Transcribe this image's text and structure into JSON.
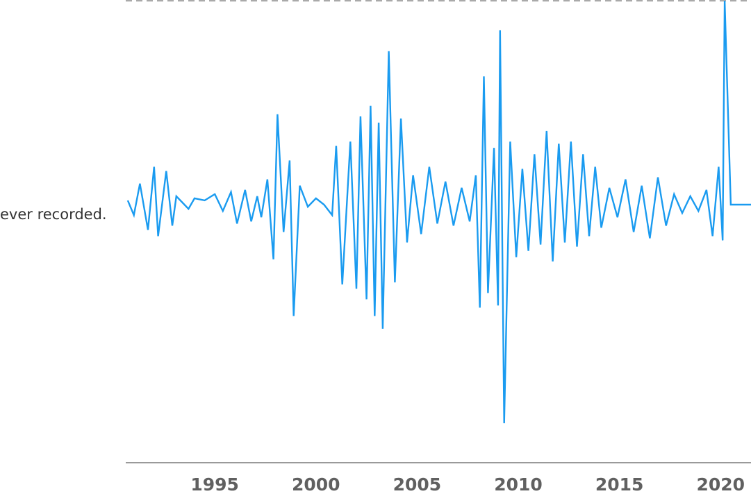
{
  "annotation_text": "ever recorded.",
  "chart_data": {
    "type": "line",
    "title": "",
    "xlabel": "",
    "ylabel": "",
    "x_ticks": [
      "1995",
      "2000",
      "2005",
      "2010",
      "2015",
      "2020"
    ],
    "xlim": [
      1990.6,
      2021.5
    ],
    "grid": false,
    "legend": "none",
    "series": [
      {
        "color": "#1a9bf0",
        "x": [
          1990.7,
          1991.0,
          1991.3,
          1991.7,
          1992.0,
          1992.2,
          1992.6,
          1992.9,
          1993.1,
          1993.4,
          1993.7,
          1994.0,
          1994.5,
          1995.0,
          1995.4,
          1995.8,
          1996.1,
          1996.5,
          1996.8,
          1997.1,
          1997.3,
          1997.6,
          1997.9,
          1998.1,
          1998.4,
          1998.7,
          1998.9,
          1999.2,
          1999.6,
          2000.0,
          2000.4,
          2000.8,
          2001.0,
          2001.3,
          2001.7,
          2002.0,
          2002.2,
          2002.5,
          2002.7,
          2002.9,
          2003.1,
          2003.3,
          2003.6,
          2003.9,
          2004.2,
          2004.5,
          2004.8,
          2005.2,
          2005.6,
          2006.0,
          2006.4,
          2006.8,
          2007.2,
          2007.6,
          2007.9,
          2008.1,
          2008.3,
          2008.5,
          2008.8,
          2009.0,
          2009.1,
          2009.3,
          2009.6,
          2009.9,
          2010.2,
          2010.5,
          2010.8,
          2011.1,
          2011.4,
          2011.7,
          2012.0,
          2012.3,
          2012.6,
          2012.9,
          2013.2,
          2013.5,
          2013.8,
          2014.1,
          2014.5,
          2014.9,
          2015.3,
          2015.7,
          2016.1,
          2016.5,
          2016.9,
          2017.3,
          2017.7,
          2018.1,
          2018.5,
          2018.9,
          2019.3,
          2019.6,
          2019.9,
          2020.1,
          2020.2,
          2020.5,
          2021.0,
          2021.5
        ],
        "y": [
          0.2,
          -0.5,
          1.0,
          -1.2,
          1.8,
          -1.5,
          1.6,
          -1.0,
          0.4,
          0.1,
          -0.2,
          0.3,
          0.2,
          0.5,
          -0.3,
          0.6,
          -0.9,
          0.7,
          -0.8,
          0.4,
          -0.6,
          1.2,
          -2.6,
          4.3,
          -1.3,
          2.1,
          -5.3,
          0.9,
          -0.1,
          0.3,
          0.0,
          -0.5,
          2.8,
          -3.8,
          3.0,
          -4.0,
          4.2,
          -4.5,
          4.7,
          -5.3,
          3.9,
          -5.9,
          7.3,
          -3.7,
          4.1,
          -1.8,
          1.4,
          -1.4,
          1.8,
          -0.9,
          1.1,
          -1.0,
          0.8,
          -0.8,
          1.4,
          -4.9,
          6.1,
          -4.2,
          2.7,
          -4.8,
          8.3,
          -10.4,
          3.0,
          -2.5,
          1.7,
          -2.2,
          2.4,
          -1.9,
          3.5,
          -2.7,
          2.9,
          -1.8,
          3.0,
          -2.0,
          2.4,
          -1.5,
          1.8,
          -1.1,
          0.8,
          -0.6,
          1.2,
          -1.3,
          0.9,
          -1.6,
          1.3,
          -1.0,
          0.5,
          -0.4,
          0.4,
          -0.3,
          0.7,
          -1.5,
          1.8,
          -1.7,
          9.7,
          0.0,
          0.0,
          0.0
        ]
      }
    ],
    "reference_line": {
      "style": "dashed",
      "color": "#a0a0a0",
      "y": 9.7
    }
  }
}
